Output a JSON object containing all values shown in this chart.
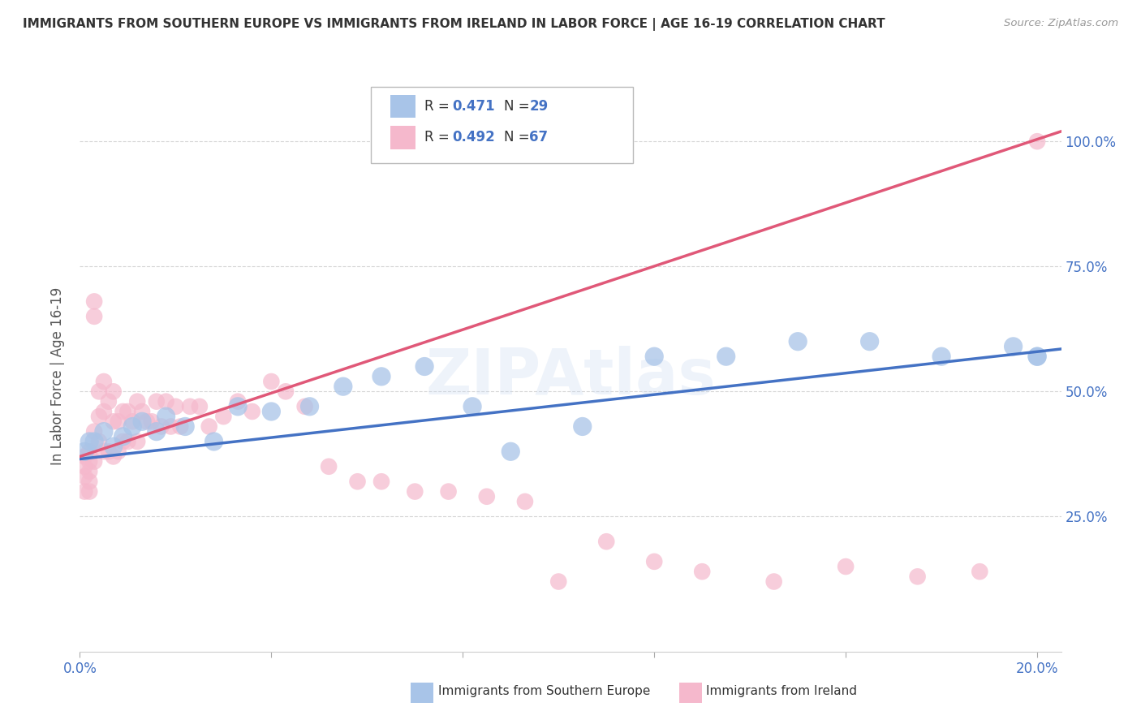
{
  "title": "IMMIGRANTS FROM SOUTHERN EUROPE VS IMMIGRANTS FROM IRELAND IN LABOR FORCE | AGE 16-19 CORRELATION CHART",
  "source": "Source: ZipAtlas.com",
  "ylabel": "In Labor Force | Age 16-19",
  "xlim": [
    0.0,
    0.205
  ],
  "ylim": [
    -0.02,
    1.08
  ],
  "yticks": [
    0.25,
    0.5,
    0.75,
    1.0
  ],
  "yticklabels": [
    "25.0%",
    "50.0%",
    "75.0%",
    "100.0%"
  ],
  "blue_color": "#a8c4e8",
  "pink_color": "#f5b8cc",
  "blue_line_color": "#4472c4",
  "pink_line_color": "#e05878",
  "legend_R_blue": "R = 0.471",
  "legend_N_blue": "N = 29",
  "legend_R_pink": "R = 0.492",
  "legend_N_pink": "N = 67",
  "blue_scatter_x": [
    0.001,
    0.002,
    0.003,
    0.005,
    0.007,
    0.009,
    0.011,
    0.013,
    0.016,
    0.018,
    0.022,
    0.028,
    0.033,
    0.04,
    0.048,
    0.055,
    0.063,
    0.072,
    0.082,
    0.09,
    0.105,
    0.12,
    0.135,
    0.15,
    0.165,
    0.18,
    0.195,
    0.2,
    0.2
  ],
  "blue_scatter_y": [
    0.38,
    0.4,
    0.4,
    0.42,
    0.39,
    0.41,
    0.43,
    0.44,
    0.42,
    0.45,
    0.43,
    0.4,
    0.47,
    0.46,
    0.47,
    0.51,
    0.53,
    0.55,
    0.47,
    0.38,
    0.43,
    0.57,
    0.57,
    0.6,
    0.6,
    0.57,
    0.59,
    0.57,
    0.57
  ],
  "pink_scatter_x": [
    0.001,
    0.001,
    0.001,
    0.001,
    0.002,
    0.002,
    0.002,
    0.002,
    0.002,
    0.003,
    0.003,
    0.003,
    0.003,
    0.004,
    0.004,
    0.004,
    0.005,
    0.005,
    0.005,
    0.006,
    0.006,
    0.007,
    0.007,
    0.007,
    0.008,
    0.008,
    0.009,
    0.009,
    0.01,
    0.01,
    0.011,
    0.012,
    0.012,
    0.013,
    0.014,
    0.015,
    0.016,
    0.017,
    0.018,
    0.019,
    0.02,
    0.021,
    0.023,
    0.025,
    0.027,
    0.03,
    0.033,
    0.036,
    0.04,
    0.043,
    0.047,
    0.052,
    0.058,
    0.063,
    0.07,
    0.077,
    0.085,
    0.093,
    0.1,
    0.11,
    0.12,
    0.13,
    0.145,
    0.16,
    0.175,
    0.188,
    0.2
  ],
  "pink_scatter_y": [
    0.37,
    0.35,
    0.33,
    0.3,
    0.38,
    0.36,
    0.34,
    0.32,
    0.3,
    0.68,
    0.65,
    0.42,
    0.36,
    0.5,
    0.45,
    0.4,
    0.52,
    0.46,
    0.38,
    0.48,
    0.38,
    0.5,
    0.44,
    0.37,
    0.44,
    0.38,
    0.46,
    0.4,
    0.46,
    0.4,
    0.44,
    0.48,
    0.4,
    0.46,
    0.44,
    0.44,
    0.48,
    0.43,
    0.48,
    0.43,
    0.47,
    0.43,
    0.47,
    0.47,
    0.43,
    0.45,
    0.48,
    0.46,
    0.52,
    0.5,
    0.47,
    0.35,
    0.32,
    0.32,
    0.3,
    0.3,
    0.29,
    0.28,
    0.12,
    0.2,
    0.16,
    0.14,
    0.12,
    0.15,
    0.13,
    0.14,
    1.0
  ],
  "blue_line_x": [
    0.0,
    0.205
  ],
  "blue_line_y": [
    0.365,
    0.585
  ],
  "pink_line_x": [
    0.0,
    0.205
  ],
  "pink_line_y": [
    0.37,
    1.02
  ],
  "bg_color": "#ffffff",
  "grid_color": "#cccccc",
  "title_color": "#333333",
  "axis_label_color": "#555555",
  "tick_color": "#4472c4"
}
